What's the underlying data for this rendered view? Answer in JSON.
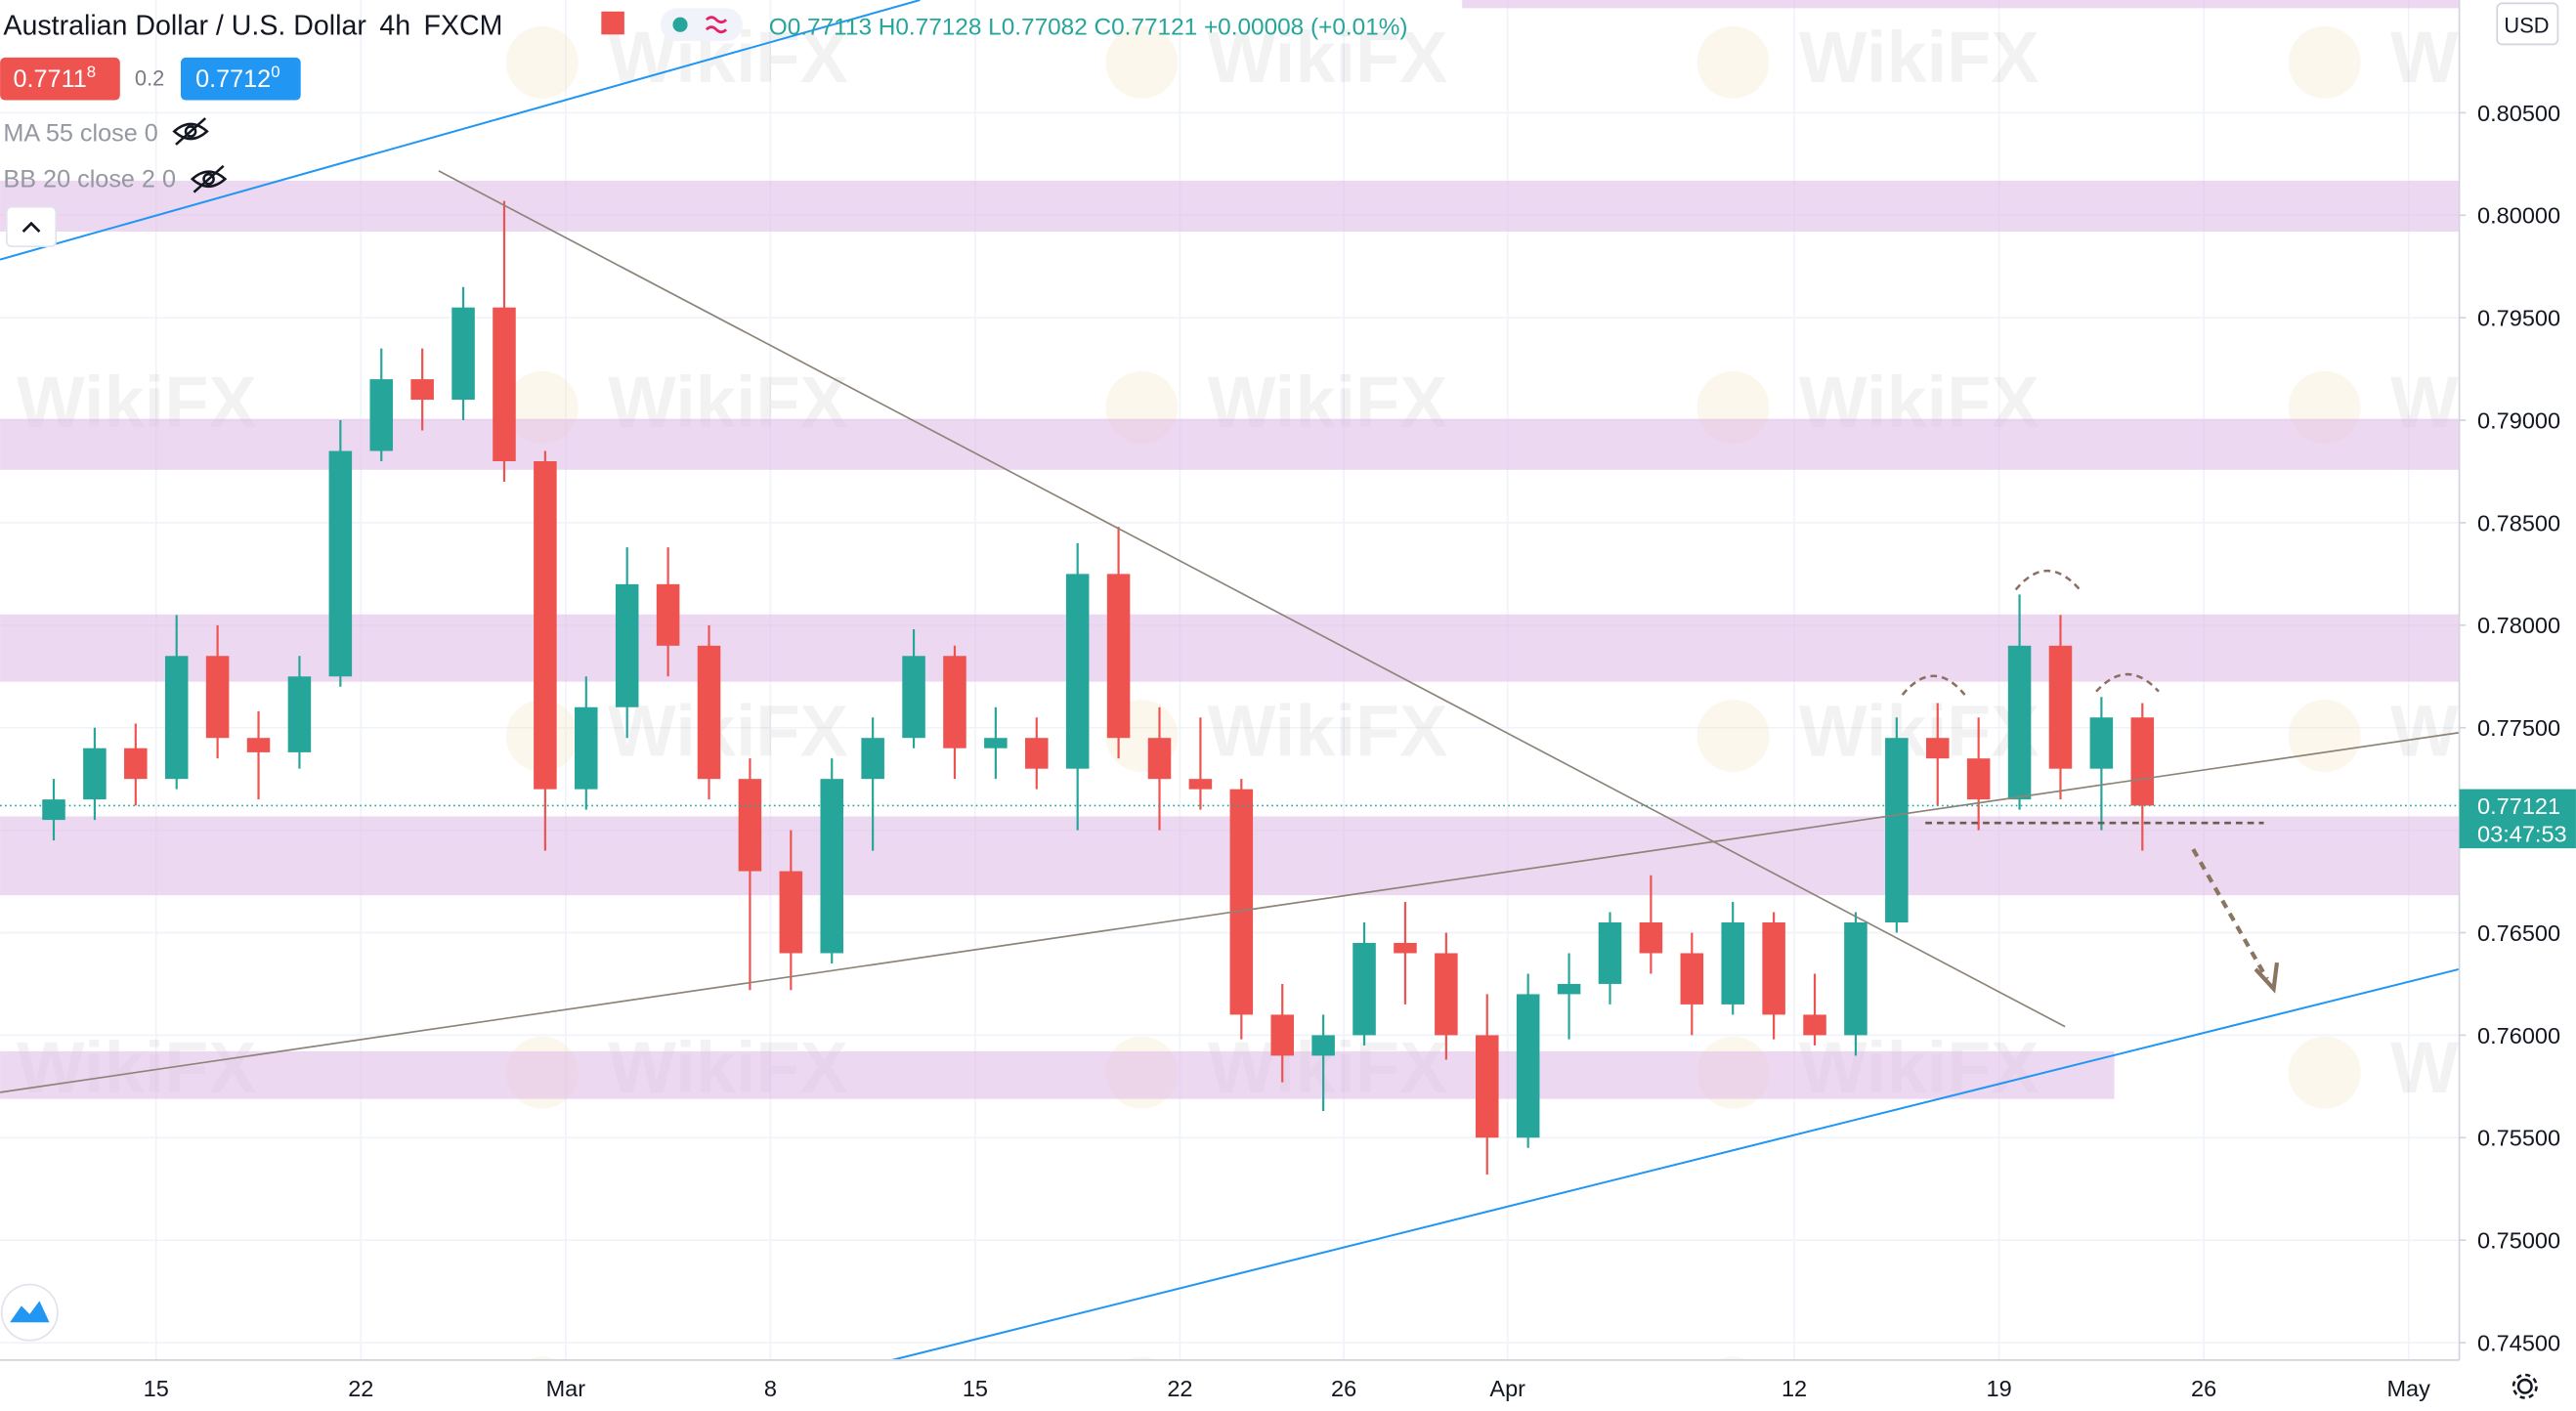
{
  "header": {
    "symbol": "Australian Dollar / U.S. Dollar",
    "interval": "4h",
    "source": "FXCM",
    "ohlc": "O0.77113 H0.77128 L0.77082 C0.77121 +0.00008 (+0.01%)",
    "bid_main": "0.7711",
    "bid_pip": "8",
    "spread": "0.2",
    "ask_main": "0.7712",
    "ask_pip": "0",
    "ma": "MA 55 close 0",
    "bb": "BB 20 close 2 0",
    "currency": "USD",
    "last_price": "0.77121",
    "countdown": "03:47:53",
    "watermark": "WikiFX"
  },
  "chart_data": {
    "type": "candlestick",
    "up_color": "#26a69a",
    "down_color": "#ef5350",
    "grid": true,
    "categories": [
      null,
      null,
      null,
      "15",
      null,
      null,
      null,
      null,
      "22",
      null,
      null,
      null,
      null,
      "Mar",
      null,
      null,
      null,
      null,
      "8",
      null,
      null,
      null,
      null,
      "15",
      null,
      null,
      null,
      null,
      "22",
      null,
      null,
      null,
      "26",
      null,
      null,
      null,
      "Apr",
      null,
      null,
      null,
      null,
      null,
      null,
      "12",
      null,
      null,
      null,
      null,
      "19",
      null,
      null,
      null,
      null,
      "26",
      null,
      null,
      null,
      null,
      "May"
    ],
    "open": [
      0.7705,
      0.7715,
      0.774,
      0.7725,
      0.7785,
      0.7745,
      0.7738,
      0.7775,
      0.7885,
      0.792,
      0.791,
      0.7955,
      0.788,
      0.772,
      0.776,
      0.782,
      0.779,
      0.7725,
      0.768,
      0.764,
      0.7725,
      0.7745,
      0.7785,
      0.774,
      0.7745,
      0.773,
      0.7825,
      0.7745,
      0.7725,
      0.772,
      0.761,
      0.759,
      0.76,
      0.7645,
      0.764,
      0.76,
      0.755,
      0.762,
      0.7625,
      0.7655,
      0.764,
      0.7615,
      0.7655,
      0.761,
      0.76,
      0.7655,
      0.7745,
      0.7735,
      0.7715,
      0.779,
      0.773,
      0.7755,
      null,
      null,
      null,
      null,
      null,
      null,
      null
    ],
    "high": [
      0.7725,
      0.775,
      0.7752,
      0.7805,
      0.78,
      0.7758,
      0.7785,
      0.79,
      0.7935,
      0.7935,
      0.7965,
      0.8007,
      0.7885,
      0.7775,
      0.7838,
      0.7838,
      0.78,
      0.7735,
      0.77,
      0.7735,
      0.7755,
      0.7798,
      0.779,
      0.776,
      0.7755,
      0.784,
      0.7848,
      0.776,
      0.7755,
      0.7725,
      0.7625,
      0.761,
      0.7655,
      0.7665,
      0.765,
      0.762,
      0.763,
      0.764,
      0.766,
      0.7678,
      0.765,
      0.7665,
      0.766,
      0.763,
      0.766,
      0.7755,
      0.7762,
      0.7755,
      0.7815,
      0.7805,
      0.7765,
      0.7762,
      null,
      null,
      null,
      null,
      null,
      null,
      null
    ],
    "low": [
      0.7695,
      0.7705,
      0.7712,
      0.772,
      0.7735,
      0.7715,
      0.773,
      0.777,
      0.788,
      0.7895,
      0.79,
      0.787,
      0.769,
      0.771,
      0.7745,
      0.7775,
      0.7715,
      0.7622,
      0.7622,
      0.7635,
      0.769,
      0.774,
      0.7725,
      0.7725,
      0.772,
      0.77,
      0.7735,
      0.77,
      0.771,
      0.7598,
      0.7577,
      0.7563,
      0.7595,
      0.7615,
      0.7588,
      0.7532,
      0.7545,
      0.7598,
      0.7615,
      0.763,
      0.76,
      0.761,
      0.7598,
      0.7595,
      0.759,
      0.765,
      0.7712,
      0.77,
      0.771,
      0.7715,
      0.77,
      0.769,
      null,
      null,
      null,
      null,
      null,
      null,
      null
    ],
    "close": [
      0.7715,
      0.774,
      0.7725,
      0.7785,
      0.7745,
      0.7738,
      0.7775,
      0.7885,
      0.792,
      0.791,
      0.7955,
      0.788,
      0.772,
      0.776,
      0.782,
      0.779,
      0.7725,
      0.768,
      0.764,
      0.7725,
      0.7745,
      0.7785,
      0.774,
      0.7745,
      0.773,
      0.7825,
      0.7745,
      0.7725,
      0.772,
      0.761,
      0.759,
      0.76,
      0.7645,
      0.764,
      0.76,
      0.755,
      0.762,
      0.7625,
      0.7655,
      0.764,
      0.7615,
      0.7655,
      0.761,
      0.76,
      0.7655,
      0.7745,
      0.7735,
      0.7715,
      0.779,
      0.773,
      0.7755,
      0.7712,
      null,
      null,
      null,
      null,
      null,
      null,
      null
    ],
    "ylim": [
      0.74415,
      0.8105
    ],
    "yticks": [
      {
        "value": 0.745,
        "label": "0.74500"
      },
      {
        "value": 0.75,
        "label": "0.75000"
      },
      {
        "value": 0.755,
        "label": "0.75500"
      },
      {
        "value": 0.76,
        "label": "0.76000"
      },
      {
        "value": 0.765,
        "label": "0.76500"
      },
      {
        "value": 0.77,
        "label": "0.77000"
      },
      {
        "value": 0.775,
        "label": "0.77500"
      },
      {
        "value": 0.78,
        "label": "0.78000"
      },
      {
        "value": 0.785,
        "label": "0.78500"
      },
      {
        "value": 0.79,
        "label": "0.79000"
      },
      {
        "value": 0.795,
        "label": "0.79500"
      },
      {
        "value": 0.8,
        "label": "0.80000"
      },
      {
        "value": 0.805,
        "label": "0.80500"
      }
    ]
  }
}
